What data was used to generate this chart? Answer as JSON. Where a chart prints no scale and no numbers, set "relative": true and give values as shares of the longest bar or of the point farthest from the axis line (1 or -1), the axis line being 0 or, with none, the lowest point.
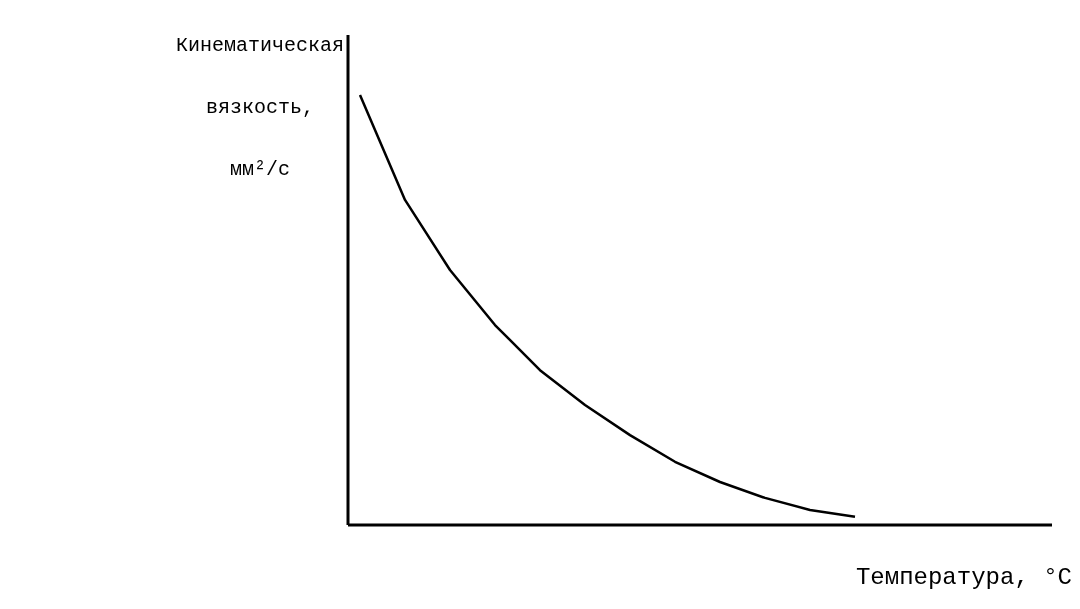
{
  "chart_data": {
    "type": "line",
    "relative": true,
    "xlabel": "Температура, °C",
    "ylabel": "Кинематическая вязкость, мм²/с",
    "categories": [
      null,
      null,
      null,
      null,
      null,
      null,
      null,
      null,
      null,
      null,
      null,
      null
    ],
    "series": [
      {
        "color": "#000000",
        "values": [
          1.0,
          0.756,
          0.593,
          0.465,
          0.36,
          0.279,
          0.209,
          0.147,
          0.1,
          0.063,
          0.035,
          0.019
        ]
      }
    ]
  }
}
